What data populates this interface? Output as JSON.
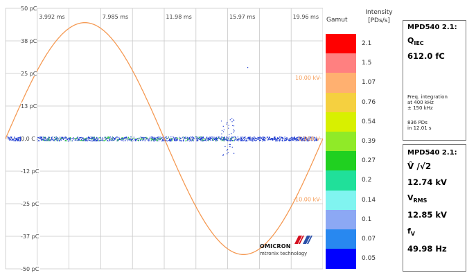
{
  "plot": {
    "y_labels": [
      "50 pC",
      "38 pC",
      "25 pC",
      "13 pC",
      "0.0 C",
      "-12 pC",
      "-25 pC",
      "-37 pC",
      "-50 pC"
    ],
    "x_labels": [
      "3.992 ms",
      "7.985 ms",
      "11.98 ms",
      "15.97 ms",
      "19.96 ms"
    ],
    "voltage_labels": [
      "10.00 kV",
      "0.000 V",
      "-10.00 kV"
    ],
    "colors": {
      "sine": "#f59a54",
      "grid": "#c8c8c8",
      "pd_blue": "#1e3cd2",
      "pd_green": "#2ecc40"
    }
  },
  "gamut": {
    "title": "Gamut",
    "intensity_title_line1": "Intensity",
    "intensity_title_line2": "[PDs/s]",
    "levels": [
      {
        "value": "2.1",
        "color": "#ff0000"
      },
      {
        "value": "1.5",
        "color": "#ff8080"
      },
      {
        "value": "1.07",
        "color": "#ffb070"
      },
      {
        "value": "0.76",
        "color": "#f5d040"
      },
      {
        "value": "0.54",
        "color": "#d8f000"
      },
      {
        "value": "0.39",
        "color": "#90ea28"
      },
      {
        "value": "0.27",
        "color": "#20d020"
      },
      {
        "value": "0.2",
        "color": "#20e09a"
      },
      {
        "value": "0.14",
        "color": "#80f4f0"
      },
      {
        "value": "0.1",
        "color": "#8ca8f4"
      },
      {
        "value": "0.07",
        "color": "#2888f0"
      },
      {
        "value": "0.05",
        "color": "#0000ff"
      }
    ]
  },
  "charge_panel": {
    "title": "MPD540 2.1:",
    "quantity": "Q",
    "quantity_sub": "IEC",
    "value": "612.0 fC",
    "note_lines": [
      "Freq. integration",
      "at 400 kHz",
      "± 150 kHz"
    ],
    "count_lines": [
      "836 PDs",
      "in 12.01 s"
    ]
  },
  "voltage_panel": {
    "title": "MPD540 2.1:",
    "peak_label": "V̂ /√2",
    "peak_value": "12.74 kV",
    "rms_label": "V",
    "rms_sub": "RMS",
    "rms_value": "12.85 kV",
    "freq_label": "f",
    "freq_sub": "V",
    "freq_value": "49.98 Hz"
  },
  "logo": {
    "name": "OMICRON",
    "tagline": "mtronix technology",
    "colors": [
      "#d41020",
      "#2a4fa8"
    ]
  }
}
